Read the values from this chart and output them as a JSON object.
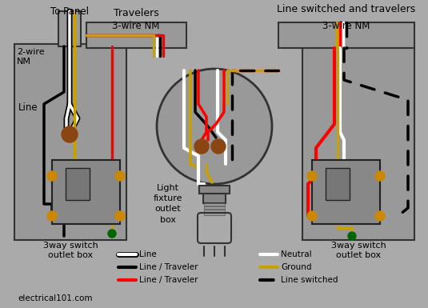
{
  "bg_color": "#aaaaaa",
  "box_color": "#999999",
  "box_edge": "#333333",
  "wire_black": "#000000",
  "wire_white": "#ffffff",
  "wire_red": "#ff0000",
  "wire_yellow": "#c8a000",
  "wire_green": "#006600",
  "wire_brown": "#8B4513",
  "wire_lw": 2.5,
  "labels": {
    "to_panel": "To Panel",
    "2wire_nm": "2-wire\nNM",
    "travelers": "Travelers",
    "3wire_nm_left": "3-wire NM",
    "line_switched": "Line switched and travelers",
    "3wire_nm_right": "3-wire NM",
    "line": "Line",
    "switch_box": "3way switch\noutlet box",
    "light_fixture": "Light\nfixture\noutlet\nbox",
    "website": "electrical101.com"
  },
  "legend_left": [
    {
      "label": "Line",
      "color": "#ffffff",
      "border": true,
      "dash": false
    },
    {
      "label": "Line / Traveler",
      "color": "#000000",
      "border": false,
      "dash": false
    },
    {
      "label": "Line / Traveler",
      "color": "#ff0000",
      "border": false,
      "dash": false
    }
  ],
  "legend_right": [
    {
      "label": "Neutral",
      "color": "#ffffff",
      "border": false,
      "dash": false
    },
    {
      "label": "Ground",
      "color": "#c8a000",
      "border": false,
      "dash": false
    },
    {
      "label": "Line switched",
      "color": "#000000",
      "border": false,
      "dash": true
    }
  ]
}
